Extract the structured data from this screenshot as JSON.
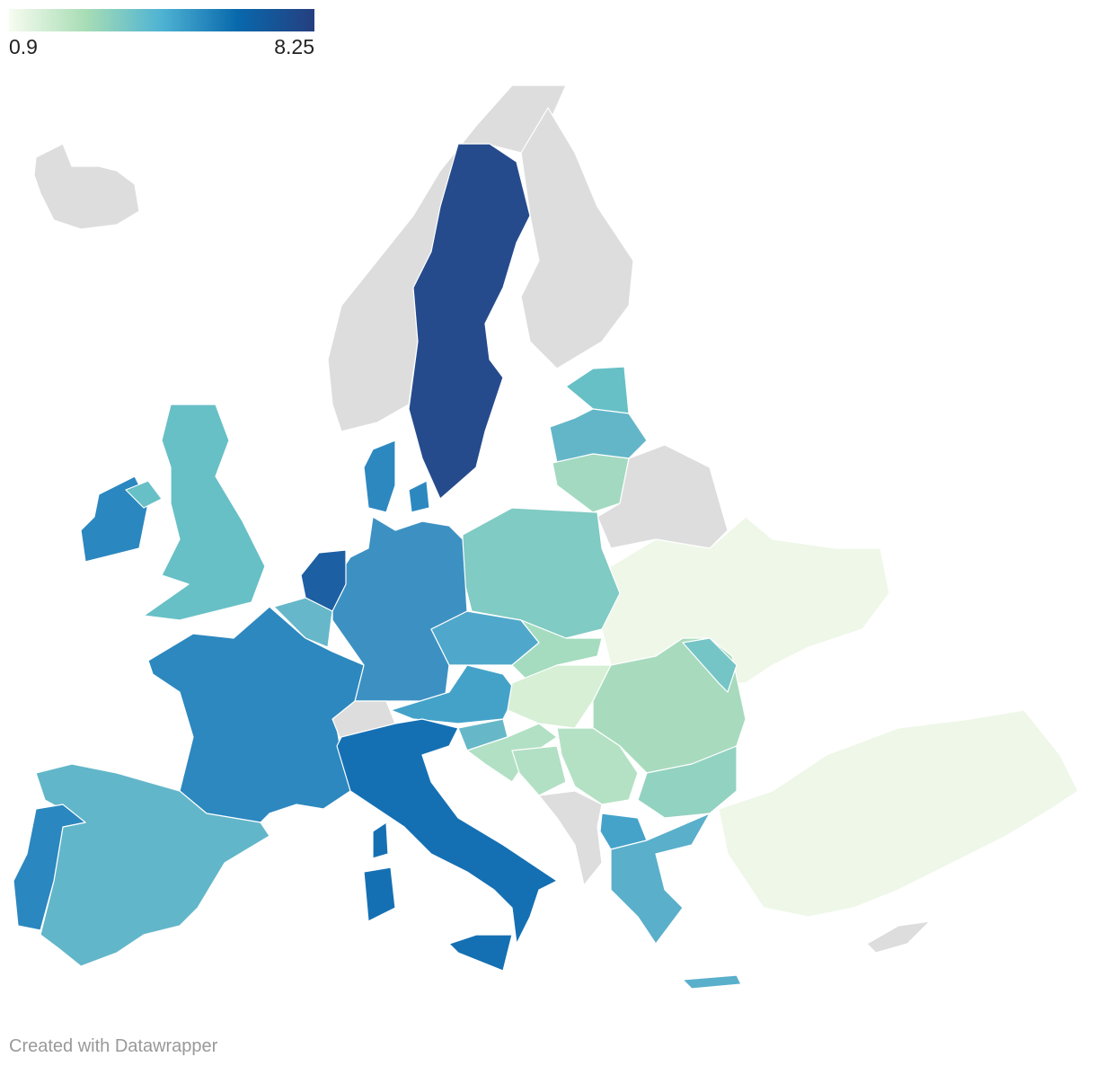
{
  "legend": {
    "min": 0.9,
    "max": 8.25,
    "colors": [
      "#f7fcf0",
      "#a8ddb5",
      "#4eb3d3",
      "#0868ac",
      "#253f7f"
    ]
  },
  "credit": "Created with Datawrapper"
}
